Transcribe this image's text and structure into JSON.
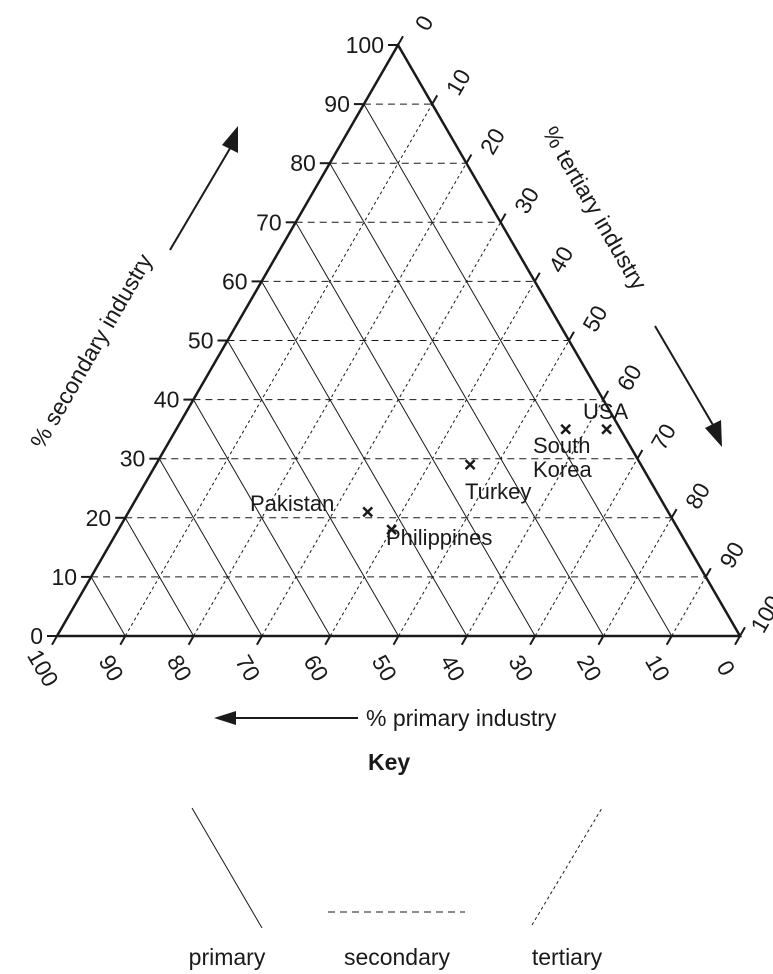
{
  "chart_data": {
    "type": "ternary",
    "axes": {
      "secondary": {
        "label": "% secondary industry",
        "ticks": [
          0,
          10,
          20,
          30,
          40,
          50,
          60,
          70,
          80,
          90,
          100
        ]
      },
      "tertiary": {
        "label": "% tertiary industry",
        "ticks": [
          0,
          10,
          20,
          30,
          40,
          50,
          60,
          70,
          80,
          90,
          100
        ]
      },
      "primary": {
        "label": "% primary industry",
        "ticks": [
          100,
          90,
          80,
          70,
          60,
          50,
          40,
          30,
          20,
          10,
          0
        ]
      }
    },
    "gridlines": "every 10%",
    "points": [
      {
        "label": "USA",
        "primary": 2,
        "secondary": 35,
        "tertiary": 63
      },
      {
        "label": "South Korea",
        "primary": 8,
        "secondary": 35,
        "tertiary": 57
      },
      {
        "label": "Turkey",
        "primary": 25,
        "secondary": 29,
        "tertiary": 46
      },
      {
        "label": "Pakistan",
        "primary": 44,
        "secondary": 21,
        "tertiary": 35
      },
      {
        "label": "Philippines",
        "primary": 42,
        "secondary": 18,
        "tertiary": 40
      }
    ],
    "point_labels": {
      "usa": "USA",
      "south_korea_line1": "South",
      "south_korea_line2": "Korea",
      "turkey": "Turkey",
      "pakistan": "Pakistan",
      "philippines": "Philippines"
    },
    "key": {
      "title": "Key",
      "primary": "primary",
      "secondary": "secondary",
      "tertiary": "tertiary"
    }
  }
}
